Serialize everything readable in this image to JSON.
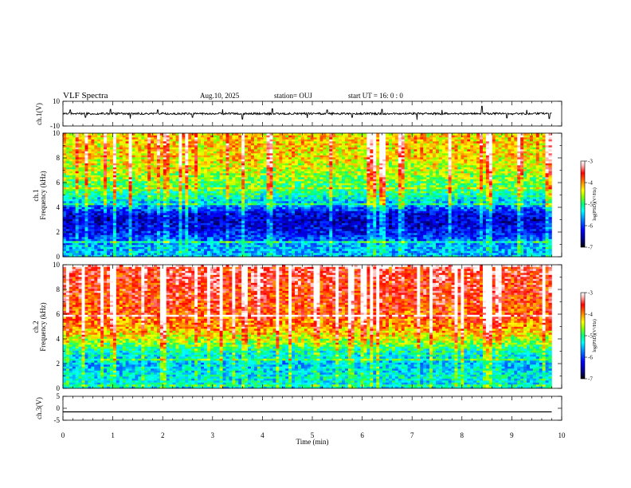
{
  "header": {
    "title": "VLF Spectra",
    "date": "Aug.10, 2025",
    "station": "station= OUJ",
    "start": "start  UT =   16: 0  : 0"
  },
  "chart_data": [
    {
      "type": "line",
      "name": "ch1_waveform",
      "ylabel": "ch.1(V)",
      "ylim": [
        -10,
        10
      ],
      "yticks": [
        "10",
        "-10"
      ],
      "xlim": [
        0,
        10
      ],
      "data_end_min": 9.8,
      "baseline": 0,
      "spikes": [
        [
          0.15,
          3
        ],
        [
          0.45,
          -3
        ],
        [
          0.95,
          3.5
        ],
        [
          1.35,
          -4
        ],
        [
          1.9,
          3
        ],
        [
          2.6,
          -3
        ],
        [
          3.2,
          3.5
        ],
        [
          3.6,
          -4.5
        ],
        [
          4.2,
          4
        ],
        [
          4.9,
          -3.5
        ],
        [
          5.3,
          3
        ],
        [
          5.8,
          -3
        ],
        [
          6.4,
          3.5
        ],
        [
          7.1,
          -5
        ],
        [
          7.6,
          3
        ],
        [
          8.4,
          6
        ],
        [
          8.9,
          -3.5
        ],
        [
          9.3,
          3
        ],
        [
          9.75,
          -4
        ]
      ]
    },
    {
      "type": "heatmap",
      "name": "ch1_spectrogram",
      "ylabel": "ch.1 Frequency  (kHz)",
      "ylim": [
        0,
        10
      ],
      "yticks": [
        "0",
        "2",
        "4",
        "6",
        "8",
        "10"
      ],
      "xlim": [
        0,
        10
      ],
      "data_end_min": 9.8,
      "profile_note": "log PSD by frequency",
      "freq_khz": [
        0,
        1,
        2,
        3,
        3.5,
        4,
        5,
        6,
        7,
        8,
        10
      ],
      "log_psd": [
        -5.5,
        -5.6,
        -6.2,
        -6.4,
        -6.3,
        -5.8,
        -5.1,
        -4.8,
        -4.5,
        -4.3,
        -4.2
      ],
      "colorbar": {
        "min": -7,
        "max": -3,
        "ticks": [
          "-3",
          "-4",
          "-5",
          "-6",
          "-7"
        ],
        "label": "log(PSD)(V²/Hz)"
      }
    },
    {
      "type": "heatmap",
      "name": "ch2_spectrogram",
      "ylabel": "ch.2 Frequency  (kHz)",
      "ylim": [
        0,
        10
      ],
      "yticks": [
        "0",
        "2",
        "4",
        "6",
        "8",
        "10"
      ],
      "xlim": [
        0,
        10
      ],
      "data_end_min": 9.8,
      "freq_khz": [
        0,
        1,
        2,
        3,
        4,
        5,
        6,
        7,
        8,
        10
      ],
      "log_psd": [
        -5.3,
        -5.3,
        -5.5,
        -5.2,
        -4.5,
        -4.0,
        -3.8,
        -3.7,
        -3.6,
        -3.5
      ],
      "colorbar": {
        "min": -7,
        "max": -3,
        "ticks": [
          "-3",
          "-4",
          "-5",
          "-6",
          "-7"
        ],
        "label": "log(PSD)(V²/Hz)"
      }
    },
    {
      "type": "line",
      "name": "ch3_waveform",
      "ylabel": "ch.3(V)",
      "ylim": [
        -5,
        5
      ],
      "yticks": [
        "5",
        "0",
        "-5"
      ],
      "xlim": [
        0,
        10
      ],
      "data_end_min": 9.8,
      "values": [
        [
          0,
          -1.5
        ],
        [
          9.8,
          -1.5
        ]
      ]
    }
  ],
  "xaxis": {
    "label": "Time  (min)",
    "ticks": [
      "0",
      "1",
      "2",
      "3",
      "4",
      "5",
      "6",
      "7",
      "8",
      "9",
      "10"
    ]
  },
  "colors": {
    "cmap": [
      "#000080",
      "#0000ff",
      "#0080ff",
      "#00ffff",
      "#00ff80",
      "#80ff00",
      "#ffff00",
      "#ff8000",
      "#ff0000",
      "#ffc0c0",
      "#ffffff"
    ]
  }
}
